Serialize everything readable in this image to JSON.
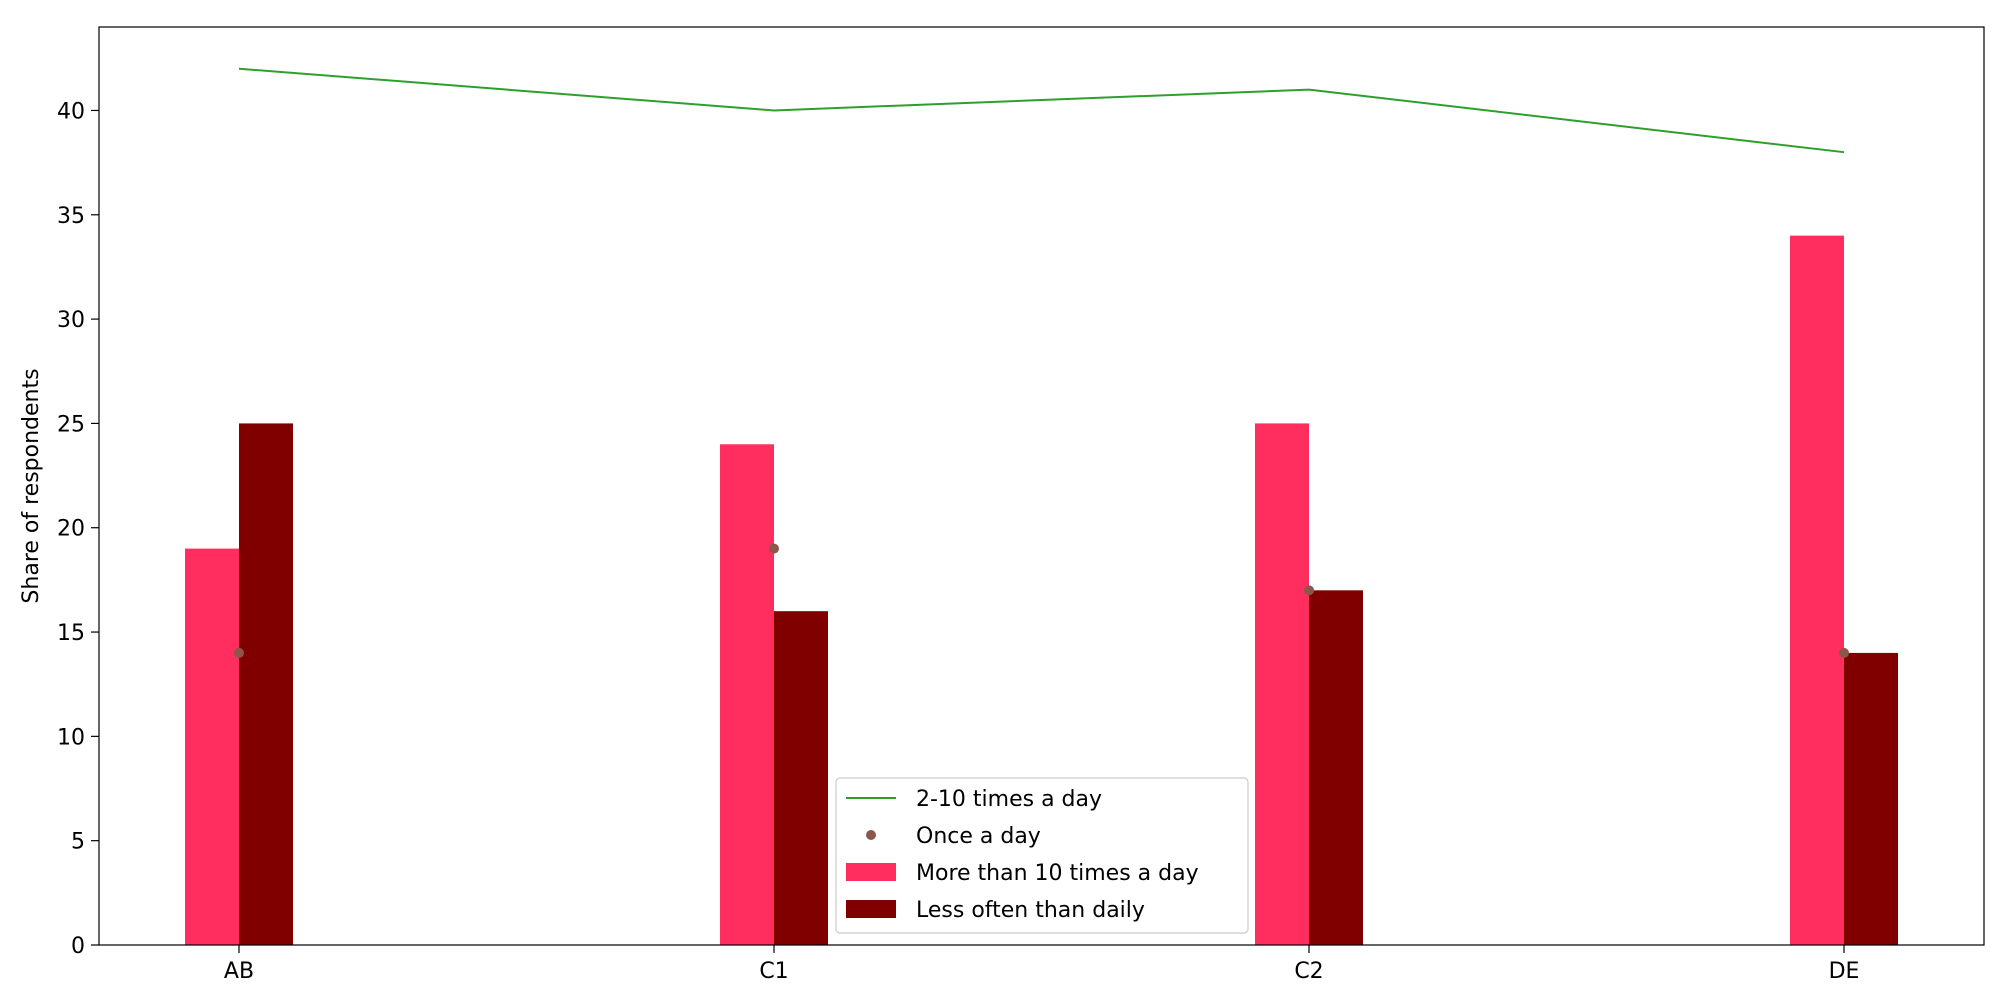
{
  "chart_data": {
    "type": "bar",
    "categories": [
      "AB",
      "C1",
      "C2",
      "DE"
    ],
    "ylabel": "Share of respondents",
    "xlabel": "",
    "ylim": [
      0,
      44
    ],
    "yticks": [
      0,
      5,
      10,
      15,
      20,
      25,
      30,
      35,
      40
    ],
    "grid": false,
    "legend_position": "bottom-center",
    "series": [
      {
        "name": "More than 10 times a day",
        "kind": "bar",
        "color": "#ff2e5f",
        "values": [
          19,
          24,
          25,
          34
        ]
      },
      {
        "name": "Less often than daily",
        "kind": "bar",
        "color": "#800000",
        "values": [
          25,
          16,
          17,
          14
        ]
      },
      {
        "name": "2-10 times a day",
        "kind": "line",
        "color": "#2ca02c",
        "values": [
          42,
          40,
          41,
          38
        ]
      },
      {
        "name": "Once a day",
        "kind": "scatter",
        "color": "#8c564b",
        "values": [
          14,
          19,
          17,
          14
        ]
      }
    ],
    "legend_order": [
      "2-10 times a day",
      "Once a day",
      "More than 10 times a day",
      "Less often than daily"
    ]
  }
}
